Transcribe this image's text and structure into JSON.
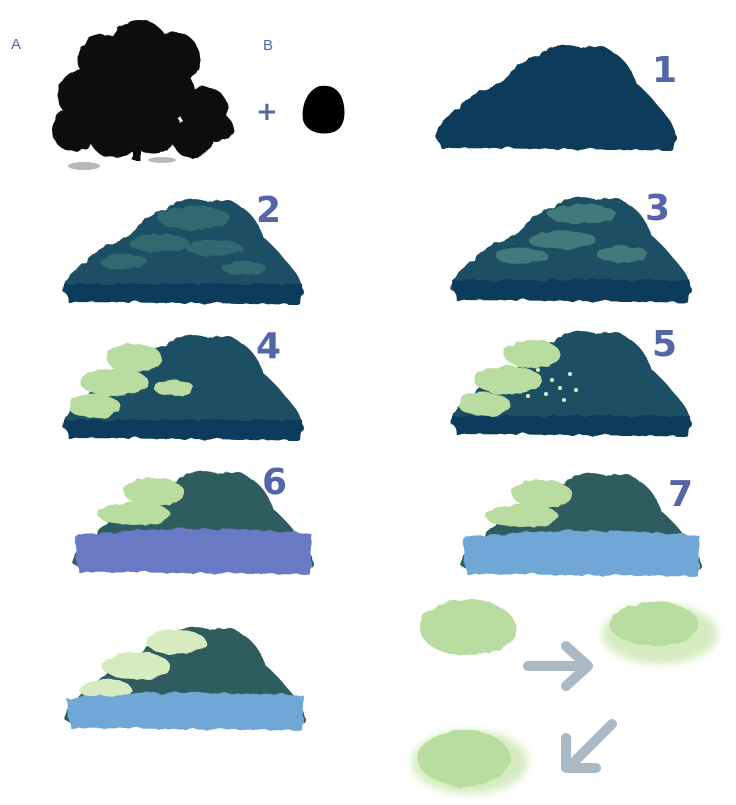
{
  "labels": {
    "a": "A",
    "b": "B",
    "plus": "+"
  },
  "steps": [
    "1",
    "2",
    "3",
    "4",
    "5",
    "6",
    "7"
  ],
  "colors": {
    "dark_navy": "#0e3a5b",
    "teal_dark": "#1f4f63",
    "teal_mid": "#2f6b6f",
    "leaf_light": "#b9dca0",
    "leaf_pale": "#d6ecc0",
    "periwinkle": "#6b79c4",
    "sky_blue": "#6fa7d6",
    "arrow_grey": "#a9b9c6",
    "label_blue": "#5566a8"
  },
  "icons": [
    "tree-silhouette-icon",
    "blob-brush-icon",
    "arrow-right-icon",
    "arrow-down-left-icon"
  ]
}
